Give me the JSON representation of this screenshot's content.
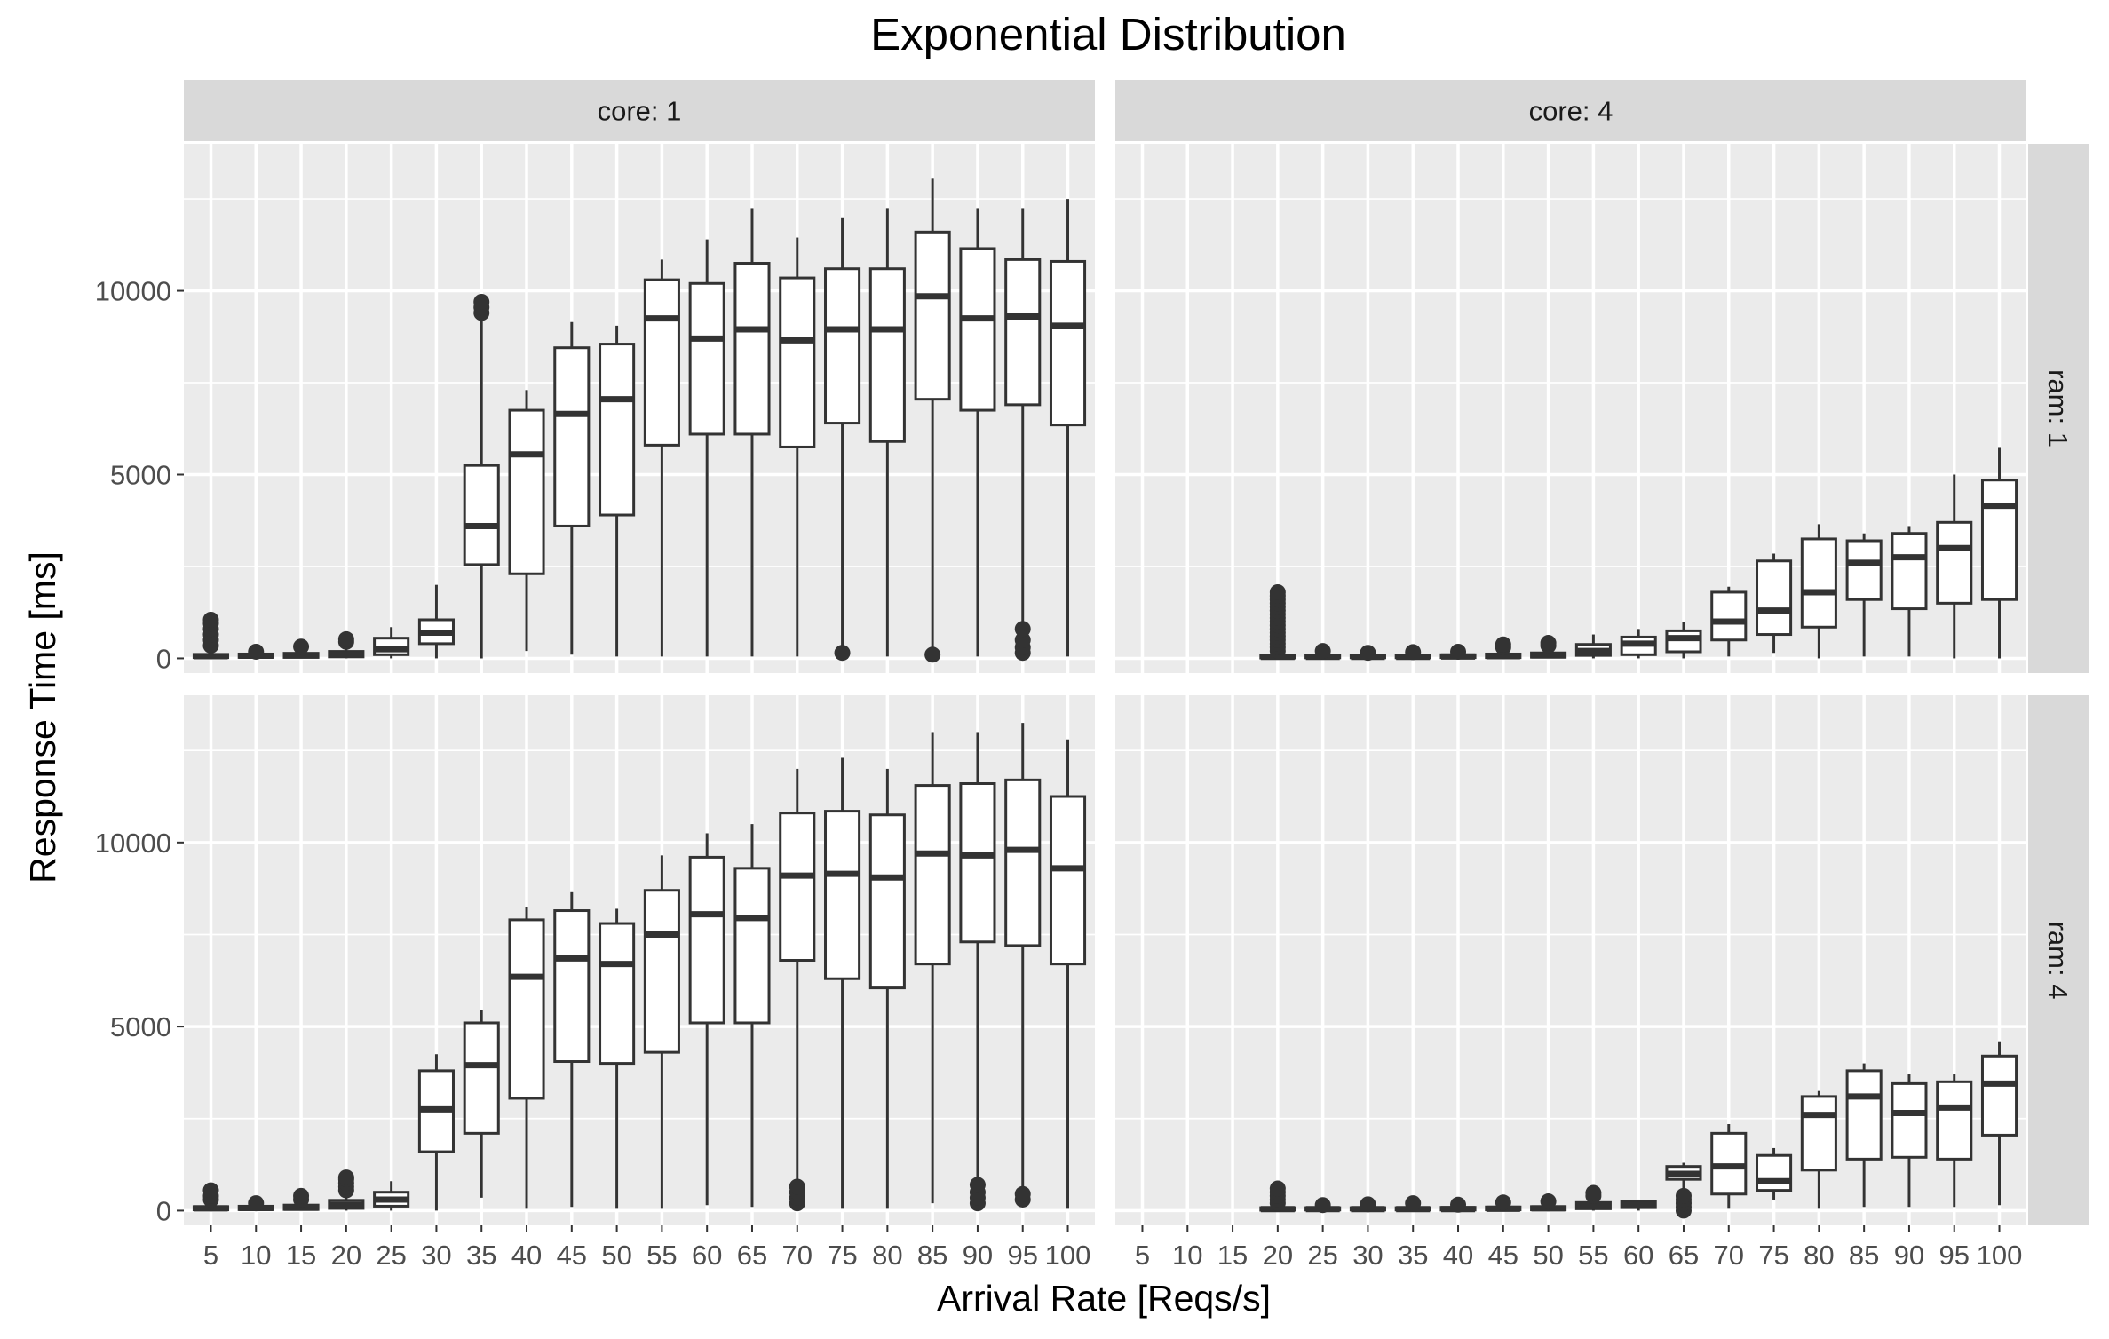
{
  "chart_data": {
    "type": "boxplot",
    "title": "Exponential Distribution",
    "xlabel": "Arrival Rate [Reqs/s]",
    "ylabel": "Response Time [ms]",
    "ylim": [
      -400,
      14000
    ],
    "yticks": [
      0,
      5000,
      10000
    ],
    "ytick_labels": [
      "0",
      "5000",
      "10000"
    ],
    "categories": [
      "5",
      "10",
      "15",
      "20",
      "25",
      "30",
      "35",
      "40",
      "45",
      "50",
      "55",
      "60",
      "65",
      "70",
      "75",
      "80",
      "85",
      "90",
      "95",
      "100"
    ],
    "grid": true,
    "facet_col_label": "core",
    "facet_row_label": "ram",
    "panels": [
      {
        "row": "ram: 1",
        "col": "core: 1",
        "boxes": [
          {
            "x": "5",
            "lo": 0,
            "q1": 20,
            "median": 60,
            "q3": 110,
            "hi": 250,
            "outliers": [
              350,
              500,
              650,
              800,
              950,
              1050
            ]
          },
          {
            "x": "10",
            "lo": 0,
            "q1": 25,
            "median": 70,
            "q3": 120,
            "hi": 200,
            "outliers": [
              180
            ]
          },
          {
            "x": "15",
            "lo": 0,
            "q1": 25,
            "median": 80,
            "q3": 140,
            "hi": 250,
            "outliers": [
              320
            ]
          },
          {
            "x": "20",
            "lo": 0,
            "q1": 40,
            "median": 110,
            "q3": 190,
            "hi": 350,
            "outliers": [
              450,
              520
            ]
          },
          {
            "x": "25",
            "lo": 0,
            "q1": 100,
            "median": 250,
            "q3": 550,
            "hi": 850,
            "outliers": []
          },
          {
            "x": "30",
            "lo": 0,
            "q1": 400,
            "median": 700,
            "q3": 1050,
            "hi": 2000,
            "outliers": []
          },
          {
            "x": "35",
            "lo": 0,
            "q1": 2550,
            "median": 3600,
            "q3": 5250,
            "hi": 9250,
            "outliers": [
              9400,
              9550,
              9700
            ]
          },
          {
            "x": "40",
            "lo": 200,
            "q1": 2300,
            "median": 5550,
            "q3": 6750,
            "hi": 7300,
            "outliers": []
          },
          {
            "x": "45",
            "lo": 100,
            "q1": 3600,
            "median": 6650,
            "q3": 8450,
            "hi": 9150,
            "outliers": []
          },
          {
            "x": "50",
            "lo": 50,
            "q1": 3900,
            "median": 7050,
            "q3": 8550,
            "hi": 9050,
            "outliers": []
          },
          {
            "x": "55",
            "lo": 50,
            "q1": 5800,
            "median": 9250,
            "q3": 10300,
            "hi": 10850,
            "outliers": []
          },
          {
            "x": "60",
            "lo": 50,
            "q1": 6100,
            "median": 8700,
            "q3": 10200,
            "hi": 11400,
            "outliers": []
          },
          {
            "x": "65",
            "lo": 50,
            "q1": 6100,
            "median": 8950,
            "q3": 10750,
            "hi": 12250,
            "outliers": []
          },
          {
            "x": "70",
            "lo": 50,
            "q1": 5750,
            "median": 8650,
            "q3": 10350,
            "hi": 11450,
            "outliers": []
          },
          {
            "x": "75",
            "lo": 300,
            "q1": 6400,
            "median": 8950,
            "q3": 10600,
            "hi": 12000,
            "outliers": [
              150
            ]
          },
          {
            "x": "80",
            "lo": 50,
            "q1": 5900,
            "median": 8950,
            "q3": 10600,
            "hi": 12250,
            "outliers": []
          },
          {
            "x": "85",
            "lo": 250,
            "q1": 7050,
            "median": 9850,
            "q3": 11600,
            "hi": 13050,
            "outliers": [
              100
            ]
          },
          {
            "x": "90",
            "lo": 50,
            "q1": 6750,
            "median": 9250,
            "q3": 11150,
            "hi": 12250,
            "outliers": []
          },
          {
            "x": "95",
            "lo": 950,
            "q1": 6900,
            "median": 9300,
            "q3": 10850,
            "hi": 12250,
            "outliers": [
              150,
              300,
              500,
              800
            ]
          },
          {
            "x": "100",
            "lo": 50,
            "q1": 6350,
            "median": 9050,
            "q3": 10800,
            "hi": 12500,
            "outliers": []
          }
        ]
      },
      {
        "row": "ram: 1",
        "col": "core: 4",
        "boxes": [
          {
            "x": "20",
            "lo": 0,
            "q1": 10,
            "median": 40,
            "q3": 80,
            "hi": 150,
            "outliers": [
              200,
              300,
              400,
              500,
              600,
              700,
              800,
              900,
              1000,
              1100,
              1200,
              1300,
              1400,
              1500,
              1600,
              1700,
              1800
            ]
          },
          {
            "x": "25",
            "lo": 0,
            "q1": 15,
            "median": 40,
            "q3": 80,
            "hi": 150,
            "outliers": [
              200
            ]
          },
          {
            "x": "30",
            "lo": 0,
            "q1": 15,
            "median": 40,
            "q3": 80,
            "hi": 130,
            "outliers": [
              150
            ]
          },
          {
            "x": "35",
            "lo": 0,
            "q1": 15,
            "median": 40,
            "q3": 80,
            "hi": 130,
            "outliers": [
              170
            ]
          },
          {
            "x": "40",
            "lo": 0,
            "q1": 20,
            "median": 50,
            "q3": 100,
            "hi": 150,
            "outliers": [
              180
            ]
          },
          {
            "x": "45",
            "lo": 0,
            "q1": 20,
            "median": 60,
            "q3": 120,
            "hi": 200,
            "outliers": [
              300,
              380
            ]
          },
          {
            "x": "50",
            "lo": 0,
            "q1": 30,
            "median": 80,
            "q3": 150,
            "hi": 250,
            "outliers": [
              350,
              420
            ]
          },
          {
            "x": "55",
            "lo": 0,
            "q1": 80,
            "median": 200,
            "q3": 380,
            "hi": 650,
            "outliers": []
          },
          {
            "x": "60",
            "lo": 0,
            "q1": 100,
            "median": 400,
            "q3": 580,
            "hi": 800,
            "outliers": []
          },
          {
            "x": "65",
            "lo": 0,
            "q1": 180,
            "median": 550,
            "q3": 750,
            "hi": 1000,
            "outliers": []
          },
          {
            "x": "70",
            "lo": 50,
            "q1": 500,
            "median": 1000,
            "q3": 1800,
            "hi": 1950,
            "outliers": []
          },
          {
            "x": "75",
            "lo": 150,
            "q1": 650,
            "median": 1300,
            "q3": 2650,
            "hi": 2850,
            "outliers": []
          },
          {
            "x": "80",
            "lo": 0,
            "q1": 850,
            "median": 1800,
            "q3": 3250,
            "hi": 3650,
            "outliers": []
          },
          {
            "x": "85",
            "lo": 50,
            "q1": 1600,
            "median": 2600,
            "q3": 3200,
            "hi": 3400,
            "outliers": []
          },
          {
            "x": "90",
            "lo": 50,
            "q1": 1350,
            "median": 2750,
            "q3": 3400,
            "hi": 3600,
            "outliers": []
          },
          {
            "x": "95",
            "lo": 0,
            "q1": 1500,
            "median": 3000,
            "q3": 3700,
            "hi": 5000,
            "outliers": []
          },
          {
            "x": "100",
            "lo": 0,
            "q1": 1600,
            "median": 4150,
            "q3": 4850,
            "hi": 5750,
            "outliers": []
          }
        ]
      },
      {
        "row": "ram: 4",
        "col": "core: 1",
        "boxes": [
          {
            "x": "5",
            "lo": 0,
            "q1": 20,
            "median": 60,
            "q3": 110,
            "hi": 200,
            "outliers": [
              300,
              400,
              550
            ]
          },
          {
            "x": "10",
            "lo": 0,
            "q1": 25,
            "median": 70,
            "q3": 120,
            "hi": 170,
            "outliers": [
              200
            ]
          },
          {
            "x": "15",
            "lo": 0,
            "q1": 30,
            "median": 80,
            "q3": 150,
            "hi": 230,
            "outliers": [
              300,
              400
            ]
          },
          {
            "x": "20",
            "lo": 0,
            "q1": 60,
            "median": 160,
            "q3": 280,
            "hi": 450,
            "outliers": [
              550,
              650,
              750,
              850,
              900
            ]
          },
          {
            "x": "25",
            "lo": 0,
            "q1": 120,
            "median": 300,
            "q3": 500,
            "hi": 800,
            "outliers": []
          },
          {
            "x": "30",
            "lo": 0,
            "q1": 1600,
            "median": 2750,
            "q3": 3800,
            "hi": 4250,
            "outliers": []
          },
          {
            "x": "35",
            "lo": 350,
            "q1": 2100,
            "median": 3950,
            "q3": 5100,
            "hi": 5450,
            "outliers": []
          },
          {
            "x": "40",
            "lo": 50,
            "q1": 3050,
            "median": 6350,
            "q3": 7900,
            "hi": 8250,
            "outliers": []
          },
          {
            "x": "45",
            "lo": 100,
            "q1": 4050,
            "median": 6850,
            "q3": 8150,
            "hi": 8650,
            "outliers": []
          },
          {
            "x": "50",
            "lo": 50,
            "q1": 4000,
            "median": 6700,
            "q3": 7800,
            "hi": 8200,
            "outliers": []
          },
          {
            "x": "55",
            "lo": 50,
            "q1": 4300,
            "median": 7500,
            "q3": 8700,
            "hi": 9650,
            "outliers": []
          },
          {
            "x": "60",
            "lo": 150,
            "q1": 5100,
            "median": 8050,
            "q3": 9600,
            "hi": 10250,
            "outliers": []
          },
          {
            "x": "65",
            "lo": 100,
            "q1": 5100,
            "median": 7950,
            "q3": 9300,
            "hi": 10500,
            "outliers": []
          },
          {
            "x": "70",
            "lo": 700,
            "q1": 6800,
            "median": 9100,
            "q3": 10800,
            "hi": 12000,
            "outliers": [
              200,
              350,
              500,
              650
            ]
          },
          {
            "x": "75",
            "lo": 50,
            "q1": 6300,
            "median": 9150,
            "q3": 10850,
            "hi": 12300,
            "outliers": []
          },
          {
            "x": "80",
            "lo": 50,
            "q1": 6050,
            "median": 9050,
            "q3": 10750,
            "hi": 12000,
            "outliers": []
          },
          {
            "x": "85",
            "lo": 200,
            "q1": 6700,
            "median": 9700,
            "q3": 11550,
            "hi": 13000,
            "outliers": []
          },
          {
            "x": "90",
            "lo": 800,
            "q1": 7300,
            "median": 9650,
            "q3": 11600,
            "hi": 13000,
            "outliers": [
              200,
              350,
              500,
              700
            ]
          },
          {
            "x": "95",
            "lo": 450,
            "q1": 7200,
            "median": 9800,
            "q3": 11700,
            "hi": 13250,
            "outliers": [
              300,
              450
            ]
          },
          {
            "x": "100",
            "lo": 50,
            "q1": 6700,
            "median": 9300,
            "q3": 11250,
            "hi": 12800,
            "outliers": []
          }
        ]
      },
      {
        "row": "ram: 4",
        "col": "core: 4",
        "boxes": [
          {
            "x": "20",
            "lo": 0,
            "q1": 10,
            "median": 40,
            "q3": 80,
            "hi": 150,
            "outliers": [
              200,
              300,
              400,
              500,
              600
            ]
          },
          {
            "x": "25",
            "lo": 0,
            "q1": 15,
            "median": 40,
            "q3": 80,
            "hi": 130,
            "outliers": [
              150
            ]
          },
          {
            "x": "30",
            "lo": 0,
            "q1": 15,
            "median": 40,
            "q3": 80,
            "hi": 130,
            "outliers": [
              170
            ]
          },
          {
            "x": "35",
            "lo": 0,
            "q1": 15,
            "median": 40,
            "q3": 80,
            "hi": 150,
            "outliers": [
              200
            ]
          },
          {
            "x": "40",
            "lo": 0,
            "q1": 15,
            "median": 40,
            "q3": 90,
            "hi": 140,
            "outliers": [
              160
            ]
          },
          {
            "x": "45",
            "lo": 0,
            "q1": 20,
            "median": 50,
            "q3": 100,
            "hi": 160,
            "outliers": [
              220
            ]
          },
          {
            "x": "50",
            "lo": 0,
            "q1": 20,
            "median": 60,
            "q3": 110,
            "hi": 200,
            "outliers": [
              250
            ]
          },
          {
            "x": "55",
            "lo": 0,
            "q1": 50,
            "median": 120,
            "q3": 220,
            "hi": 350,
            "outliers": [
              400,
              480
            ]
          },
          {
            "x": "60",
            "lo": 0,
            "q1": 80,
            "median": 150,
            "q3": 250,
            "hi": 300,
            "outliers": []
          },
          {
            "x": "65",
            "lo": 600,
            "q1": 850,
            "median": 1000,
            "q3": 1200,
            "hi": 1300,
            "outliers": [
              0,
              100,
              200,
              300,
              400
            ]
          },
          {
            "x": "70",
            "lo": 50,
            "q1": 450,
            "median": 1200,
            "q3": 2100,
            "hi": 2350,
            "outliers": []
          },
          {
            "x": "75",
            "lo": 300,
            "q1": 550,
            "median": 800,
            "q3": 1500,
            "hi": 1700,
            "outliers": []
          },
          {
            "x": "80",
            "lo": 50,
            "q1": 1100,
            "median": 2600,
            "q3": 3100,
            "hi": 3250,
            "outliers": []
          },
          {
            "x": "85",
            "lo": 100,
            "q1": 1400,
            "median": 3100,
            "q3": 3800,
            "hi": 4000,
            "outliers": []
          },
          {
            "x": "90",
            "lo": 100,
            "q1": 1450,
            "median": 2650,
            "q3": 3450,
            "hi": 3700,
            "outliers": []
          },
          {
            "x": "95",
            "lo": 100,
            "q1": 1400,
            "median": 2800,
            "q3": 3500,
            "hi": 3700,
            "outliers": []
          },
          {
            "x": "100",
            "lo": 150,
            "q1": 2050,
            "median": 3450,
            "q3": 4200,
            "hi": 4600,
            "outliers": []
          }
        ]
      }
    ]
  }
}
